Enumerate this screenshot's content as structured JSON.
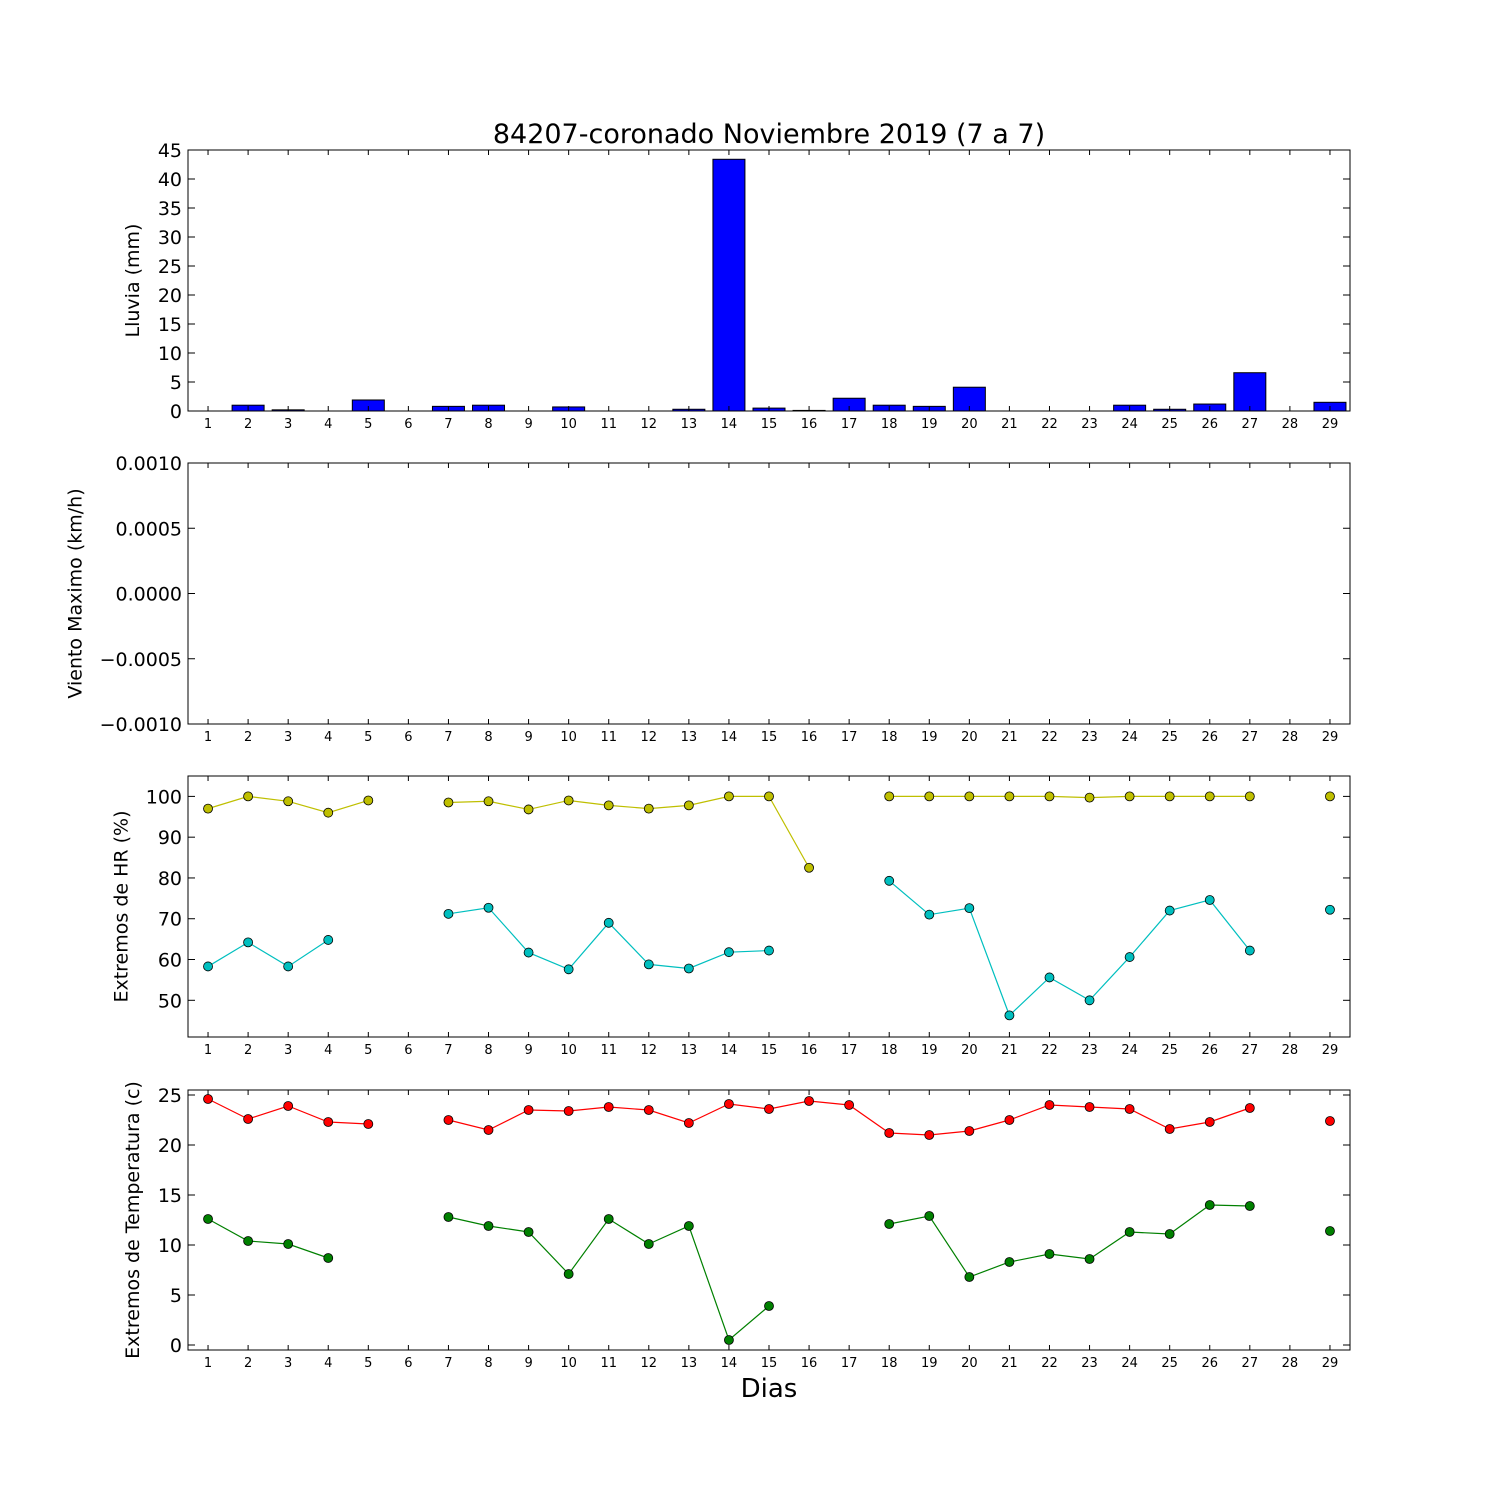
{
  "chart_data": {
    "title": "84207-coronado Noviembre 2019  (7 a 7)",
    "xlabel": "Dias",
    "x": [
      1,
      2,
      3,
      4,
      5,
      6,
      7,
      8,
      9,
      10,
      11,
      12,
      13,
      14,
      15,
      16,
      17,
      18,
      19,
      20,
      21,
      22,
      23,
      24,
      25,
      26,
      27,
      28,
      29
    ],
    "panels": [
      {
        "id": "lluvia",
        "type": "bar",
        "ylabel": "Lluvia (mm)",
        "ylim": [
          0,
          45
        ],
        "yticks": [
          0,
          5,
          10,
          15,
          20,
          25,
          30,
          35,
          40,
          45
        ],
        "ytick_labels": [
          "0",
          "5",
          "10",
          "15",
          "20",
          "25",
          "30",
          "35",
          "40",
          "45"
        ],
        "series": [
          {
            "color": "#0000ff",
            "values": [
              0,
              1.0,
              0.2,
              0,
              1.9,
              0,
              0.8,
              1.0,
              0,
              0.7,
              0,
              0,
              0.3,
              43.4,
              0.5,
              0.1,
              2.2,
              1.0,
              0.8,
              4.1,
              0,
              0,
              0,
              1.0,
              0.3,
              1.2,
              6.6,
              0,
              1.5
            ]
          }
        ]
      },
      {
        "id": "viento",
        "type": "line",
        "ylabel": "Viento Maximo (km/h)",
        "ylim": [
          -0.001,
          0.001
        ],
        "yticks": [
          -0.001,
          -0.0005,
          0,
          0.0005,
          0.001
        ],
        "ytick_labels": [
          "−0.0010",
          "−0.0005",
          "0.0000",
          "0.0005",
          "0.0010"
        ],
        "series": []
      },
      {
        "id": "hr",
        "type": "line",
        "ylabel": "Extremos de HR (%)",
        "ylim": [
          41,
          105
        ],
        "yticks": [
          50,
          60,
          70,
          80,
          90,
          100
        ],
        "ytick_labels": [
          "50",
          "60",
          "70",
          "80",
          "90",
          "100"
        ],
        "series": [
          {
            "color": "#bfbf00",
            "values": [
              97,
              100,
              98.8,
              96,
              99,
              null,
              98.5,
              98.8,
              96.8,
              99,
              97.8,
              97,
              97.8,
              100,
              100,
              82.5,
              null,
              100,
              100,
              100,
              100,
              100,
              99.7,
              100,
              100,
              100,
              100,
              null,
              100
            ]
          },
          {
            "color": "#00bfbf",
            "values": [
              58.3,
              64.2,
              58.3,
              64.8,
              null,
              null,
              71.2,
              72.7,
              61.7,
              57.6,
              69,
              58.8,
              57.8,
              61.8,
              62.2,
              null,
              null,
              79.3,
              71,
              72.6,
              46.3,
              55.6,
              50,
              60.6,
              72,
              74.6,
              62.2,
              null,
              72.2
            ]
          }
        ]
      },
      {
        "id": "temperatura",
        "type": "line",
        "ylabel": "Extremos de Temperatura (c)",
        "ylim": [
          -0.5,
          25.5
        ],
        "yticks": [
          0,
          5,
          10,
          15,
          20,
          25
        ],
        "ytick_labels": [
          "0",
          "5",
          "10",
          "15",
          "20",
          "25"
        ],
        "series": [
          {
            "color": "#ff0000",
            "values": [
              24.6,
              22.6,
              23.9,
              22.3,
              22.1,
              null,
              22.5,
              21.5,
              23.5,
              23.4,
              23.8,
              23.5,
              22.2,
              24.1,
              23.6,
              24.4,
              24,
              21.2,
              21,
              21.4,
              22.5,
              24,
              23.8,
              23.6,
              21.6,
              22.3,
              23.7,
              null,
              22.4
            ]
          },
          {
            "color": "#008000",
            "values": [
              12.6,
              10.4,
              10.1,
              8.7,
              null,
              null,
              12.8,
              11.9,
              11.3,
              7.1,
              12.6,
              10.1,
              11.9,
              0.5,
              3.9,
              null,
              null,
              12.1,
              12.9,
              6.8,
              8.3,
              9.1,
              8.6,
              11.3,
              11.1,
              14,
              13.9,
              null,
              11.4
            ]
          }
        ]
      }
    ]
  }
}
